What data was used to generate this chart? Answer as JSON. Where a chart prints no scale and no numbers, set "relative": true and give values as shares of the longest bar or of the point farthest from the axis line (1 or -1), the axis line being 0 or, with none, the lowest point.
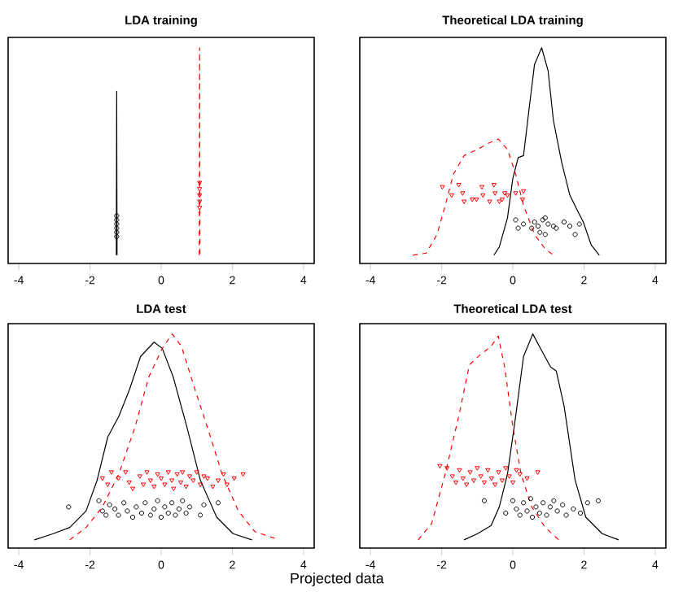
{
  "chart_data": [
    {
      "type": "line",
      "title": "LDA training",
      "relative": true,
      "tick_labels": "x",
      "xlim": [
        -4.3,
        4.3
      ],
      "xticks": [
        -4,
        -2,
        0,
        2,
        4
      ],
      "series": [
        {
          "color": "#000000",
          "line_style": "solid",
          "x": [
            -1.26,
            -1.25,
            -1.24
          ],
          "values": [
            0,
            0.79,
            0
          ]
        },
        {
          "color": "#ff0000",
          "line_style": "dashed",
          "x": [
            1.07,
            1.08,
            1.09
          ],
          "values": [
            0,
            1,
            0
          ]
        },
        {
          "type": "scatter",
          "color": "#000000",
          "marker": "circle",
          "x": [
            -1.25,
            -1.25,
            -1.25,
            -1.25,
            -1.25,
            -1.25
          ],
          "values": [
            0.09,
            0.11,
            0.13,
            0.15,
            0.17,
            0.19
          ]
        },
        {
          "type": "scatter",
          "color": "#ff0000",
          "marker": "triangle",
          "x": [
            1.08,
            1.08,
            1.08,
            1.08,
            1.08
          ],
          "values": [
            0.23,
            0.26,
            0.29,
            0.32,
            0.35
          ]
        }
      ]
    },
    {
      "type": "line",
      "title": "Theoretical LDA training",
      "relative": true,
      "tick_labels": "x",
      "xlim": [
        -4.3,
        4.3
      ],
      "xticks": [
        -4,
        -2,
        0,
        2,
        4
      ],
      "series": [
        {
          "color": "#000000",
          "line_style": "solid",
          "x": [
            -0.53,
            -0.38,
            -0.15,
            0,
            0.15,
            0.3,
            0.46,
            0.61,
            0.81,
            0.99,
            1.14,
            1.37,
            1.6,
            1.83,
            1.98,
            2.2,
            2.43
          ],
          "values": [
            0,
            0.04,
            0.18,
            0.37,
            0.47,
            0.48,
            0.71,
            0.92,
            1,
            0.89,
            0.65,
            0.45,
            0.29,
            0.21,
            0.16,
            0.05,
            0
          ]
        },
        {
          "color": "#ff0000",
          "line_style": "dashed",
          "x": [
            -2.81,
            -2.43,
            -2.13,
            -1.9,
            -1.67,
            -1.37,
            -0.99,
            -0.68,
            -0.41,
            -0.15,
            0.08,
            0.3,
            0.61,
            0.91,
            1.14
          ],
          "values": [
            0,
            0.01,
            0.1,
            0.24,
            0.39,
            0.48,
            0.51,
            0.54,
            0.56,
            0.51,
            0.39,
            0.24,
            0.1,
            0.03,
            0
          ]
        },
        {
          "type": "scatter",
          "color": "#000000",
          "marker": "circle",
          "x": [
            0.08,
            0.15,
            0.3,
            0.53,
            0.61,
            0.71,
            0.76,
            0.84,
            0.91,
            0.91,
            0.99,
            1.14,
            1.22,
            1.44,
            1.6,
            1.75,
            1.87
          ],
          "values": [
            0.17,
            0.13,
            0.15,
            0.13,
            0.16,
            0.14,
            0.11,
            0.17,
            0.18,
            0.1,
            0.15,
            0.14,
            0.13,
            0.16,
            0.14,
            0.1,
            0.15
          ]
        },
        {
          "type": "scatter",
          "color": "#ff0000",
          "marker": "triangle",
          "x": [
            -1.98,
            -1.72,
            -1.52,
            -1.41,
            -1.37,
            -1.14,
            -1.02,
            -0.87,
            -0.84,
            -0.65,
            -0.53,
            -0.5,
            -0.38,
            -0.3,
            -0.23,
            -0.15,
            0.08,
            0.3,
            0.27
          ],
          "values": [
            0.33,
            0.29,
            0.34,
            0.3,
            0.26,
            0.27,
            0.27,
            0.33,
            0.29,
            0.26,
            0.34,
            0.3,
            0.26,
            0.27,
            0.3,
            0.29,
            0.3,
            0.31,
            0.27
          ]
        }
      ]
    },
    {
      "type": "line",
      "title": "LDA  test",
      "xlabel": "Projected data",
      "relative": true,
      "tick_labels": "x",
      "xlim": [
        -4.3,
        4.3
      ],
      "xticks": [
        -4,
        -2,
        0,
        2,
        4
      ],
      "series": [
        {
          "color": "#000000",
          "line_style": "solid",
          "x": [
            -3.56,
            -3.03,
            -2.57,
            -2.11,
            -1.8,
            -1.5,
            -1.19,
            -0.89,
            -0.58,
            -0.2,
            0.03,
            0.34,
            0.72,
            1.1,
            1.56,
            2.02,
            2.55
          ],
          "values": [
            0,
            0.03,
            0.06,
            0.14,
            0.29,
            0.5,
            0.6,
            0.73,
            0.89,
            0.96,
            0.93,
            0.79,
            0.55,
            0.29,
            0.11,
            0.03,
            0
          ]
        },
        {
          "color": "#ff0000",
          "line_style": "dashed",
          "x": [
            -2.57,
            -2.11,
            -1.65,
            -1.19,
            -0.73,
            -0.35,
            0.03,
            0.31,
            0.57,
            0.95,
            1.33,
            1.71,
            2.17,
            2.63,
            3.32
          ],
          "values": [
            0,
            0.06,
            0.16,
            0.32,
            0.55,
            0.79,
            0.93,
            1,
            0.94,
            0.73,
            0.53,
            0.32,
            0.14,
            0.04,
            0
          ]
        },
        {
          "type": "scatter",
          "color": "#000000",
          "marker": "circle",
          "x": [
            -2.6,
            -1.75,
            -1.65,
            -1.55,
            -1.45,
            -1.3,
            -1.2,
            -1.05,
            -0.95,
            -0.8,
            -0.7,
            -0.55,
            -0.45,
            -0.3,
            -0.2,
            -0.1,
            0.0,
            0.1,
            0.2,
            0.3,
            0.4,
            0.5,
            0.6,
            0.7,
            0.8,
            1.1,
            1.2,
            1.6
          ],
          "values": [
            0.16,
            0.19,
            0.14,
            0.12,
            0.17,
            0.15,
            0.12,
            0.18,
            0.14,
            0.11,
            0.16,
            0.13,
            0.18,
            0.12,
            0.15,
            0.19,
            0.11,
            0.16,
            0.13,
            0.18,
            0.12,
            0.15,
            0.19,
            0.13,
            0.16,
            0.12,
            0.17,
            0.18
          ]
        },
        {
          "type": "scatter",
          "color": "#ff0000",
          "marker": "triangle",
          "x": [
            -1.65,
            -1.5,
            -1.4,
            -1.2,
            -1.0,
            -0.9,
            -0.8,
            -0.6,
            -0.5,
            -0.4,
            -0.3,
            -0.2,
            -0.1,
            0.0,
            0.1,
            0.2,
            0.3,
            0.35,
            0.45,
            0.55,
            0.6,
            0.7,
            0.8,
            0.9,
            1.0,
            1.1,
            1.2,
            1.3,
            1.45,
            1.6,
            1.75,
            1.85,
            2.05,
            2.3
          ],
          "values": [
            0.3,
            0.27,
            0.33,
            0.3,
            0.33,
            0.28,
            0.25,
            0.31,
            0.27,
            0.33,
            0.29,
            0.26,
            0.32,
            0.3,
            0.27,
            0.33,
            0.29,
            0.25,
            0.32,
            0.28,
            0.33,
            0.26,
            0.31,
            0.29,
            0.33,
            0.27,
            0.31,
            0.3,
            0.26,
            0.29,
            0.32,
            0.27,
            0.3,
            0.32
          ]
        }
      ]
    },
    {
      "type": "line",
      "title": "Theoretical LDA test",
      "relative": true,
      "tick_labels": "x",
      "xlim": [
        -4.3,
        4.3
      ],
      "xticks": [
        -4,
        -2,
        0,
        2,
        4
      ],
      "series": [
        {
          "color": "#000000",
          "line_style": "solid",
          "x": [
            -1.37,
            -0.99,
            -0.61,
            -0.38,
            -0.15,
            0.08,
            0.3,
            0.56,
            0.84,
            1.06,
            1.22,
            1.44,
            1.75,
            2.05,
            2.51,
            2.97
          ],
          "values": [
            0,
            0.03,
            0.07,
            0.16,
            0.32,
            0.6,
            0.89,
            1,
            0.91,
            0.84,
            0.82,
            0.65,
            0.29,
            0.11,
            0.03,
            0
          ]
        },
        {
          "color": "#ff0000",
          "line_style": "dashed",
          "x": [
            -2.66,
            -2.28,
            -1.9,
            -1.52,
            -1.22,
            -0.91,
            -0.61,
            -0.41,
            -0.23,
            0.0,
            0.23,
            0.53,
            0.91,
            1.29
          ],
          "values": [
            0,
            0.08,
            0.32,
            0.6,
            0.85,
            0.9,
            0.94,
            0.99,
            0.84,
            0.55,
            0.32,
            0.16,
            0.06,
            0
          ]
        },
        {
          "type": "scatter",
          "color": "#000000",
          "marker": "circle",
          "x": [
            -0.8,
            -0.2,
            0.0,
            0.1,
            0.2,
            0.3,
            0.4,
            0.5,
            0.55,
            0.65,
            0.75,
            0.85,
            0.95,
            1.05,
            1.15,
            1.25,
            1.4,
            1.5,
            1.7,
            1.9,
            2.1,
            2.4
          ],
          "values": [
            0.19,
            0.13,
            0.19,
            0.15,
            0.12,
            0.18,
            0.14,
            0.2,
            0.11,
            0.16,
            0.13,
            0.18,
            0.12,
            0.16,
            0.19,
            0.14,
            0.17,
            0.12,
            0.15,
            0.13,
            0.18,
            0.19
          ]
        },
        {
          "type": "scatter",
          "color": "#ff0000",
          "marker": "triangle",
          "x": [
            -2.05,
            -1.85,
            -1.7,
            -1.6,
            -1.5,
            -1.4,
            -1.3,
            -1.2,
            -1.1,
            -1.0,
            -0.9,
            -0.8,
            -0.7,
            -0.6,
            -0.5,
            -0.4,
            -0.3,
            -0.2,
            -0.1,
            0.0,
            0.1,
            0.2,
            0.4,
            0.7
          ],
          "values": [
            0.36,
            0.35,
            0.31,
            0.28,
            0.34,
            0.3,
            0.27,
            0.33,
            0.29,
            0.35,
            0.31,
            0.28,
            0.34,
            0.3,
            0.27,
            0.33,
            0.29,
            0.35,
            0.31,
            0.28,
            0.34,
            0.32,
            0.3,
            0.33
          ]
        }
      ]
    }
  ]
}
